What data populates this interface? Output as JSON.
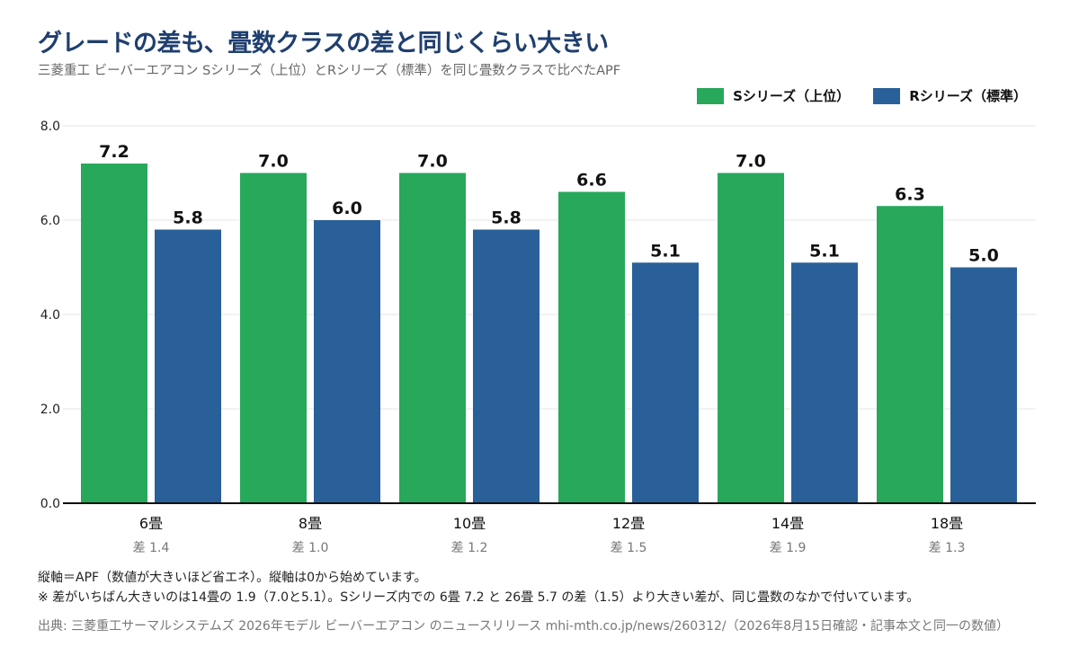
{
  "title": "グレードの差も、畳数クラスの差と同じくらい大きい",
  "subtitle": "三菱重工 ビーバーエアコン Sシリーズ（上位）とRシリーズ（標準）を同じ畳数クラスで比べたAPF",
  "colors": {
    "s_series": "#27a85b",
    "r_series": "#2a6099",
    "axis": "#111111",
    "grid": "#e4e4e4"
  },
  "legend": {
    "s_label": "Sシリーズ（上位）",
    "r_label": "Rシリーズ（標準）",
    "position": "top-right"
  },
  "chart_data": {
    "type": "bar",
    "categories": [
      "6畳",
      "8畳",
      "10畳",
      "12畳",
      "14畳",
      "18畳"
    ],
    "category_sublabels": [
      "差 1.4",
      "差 1.0",
      "差 1.2",
      "差 1.5",
      "差 1.9",
      "差 1.3"
    ],
    "series": [
      {
        "name": "Sシリーズ（上位）",
        "values": [
          7.2,
          7.0,
          7.0,
          6.6,
          7.0,
          6.3
        ],
        "labels": [
          "7.2",
          "7.0",
          "7.0",
          "6.6",
          "7.0",
          "6.3"
        ]
      },
      {
        "name": "Rシリーズ（標準）",
        "values": [
          5.8,
          6.0,
          5.8,
          5.1,
          5.1,
          5.0
        ],
        "labels": [
          "5.8",
          "6.0",
          "5.8",
          "5.1",
          "5.1",
          "5.0"
        ]
      }
    ],
    "ylim": [
      0,
      8
    ],
    "yticks": [
      "0.0",
      "2.0",
      "4.0",
      "6.0",
      "8.0"
    ],
    "grid": true
  },
  "footnotes": {
    "line1": "縦軸＝APF（数値が大きいほど省エネ）。縦軸は0から始めています。",
    "line2": "※ 差がいちばん大きいのは14畳の 1.9（7.0と5.1）。Sシリーズ内での 6畳 7.2 と 26畳 5.7 の差（1.5）より大きい差が、同じ畳数のなかで付いています。"
  },
  "source": "出典: 三菱重工サーマルシステムズ 2026年モデル ビーバーエアコン のニュースリリース mhi-mth.co.jp/news/260312/（2026年8月15日確認・記事本文と同一の数値）"
}
